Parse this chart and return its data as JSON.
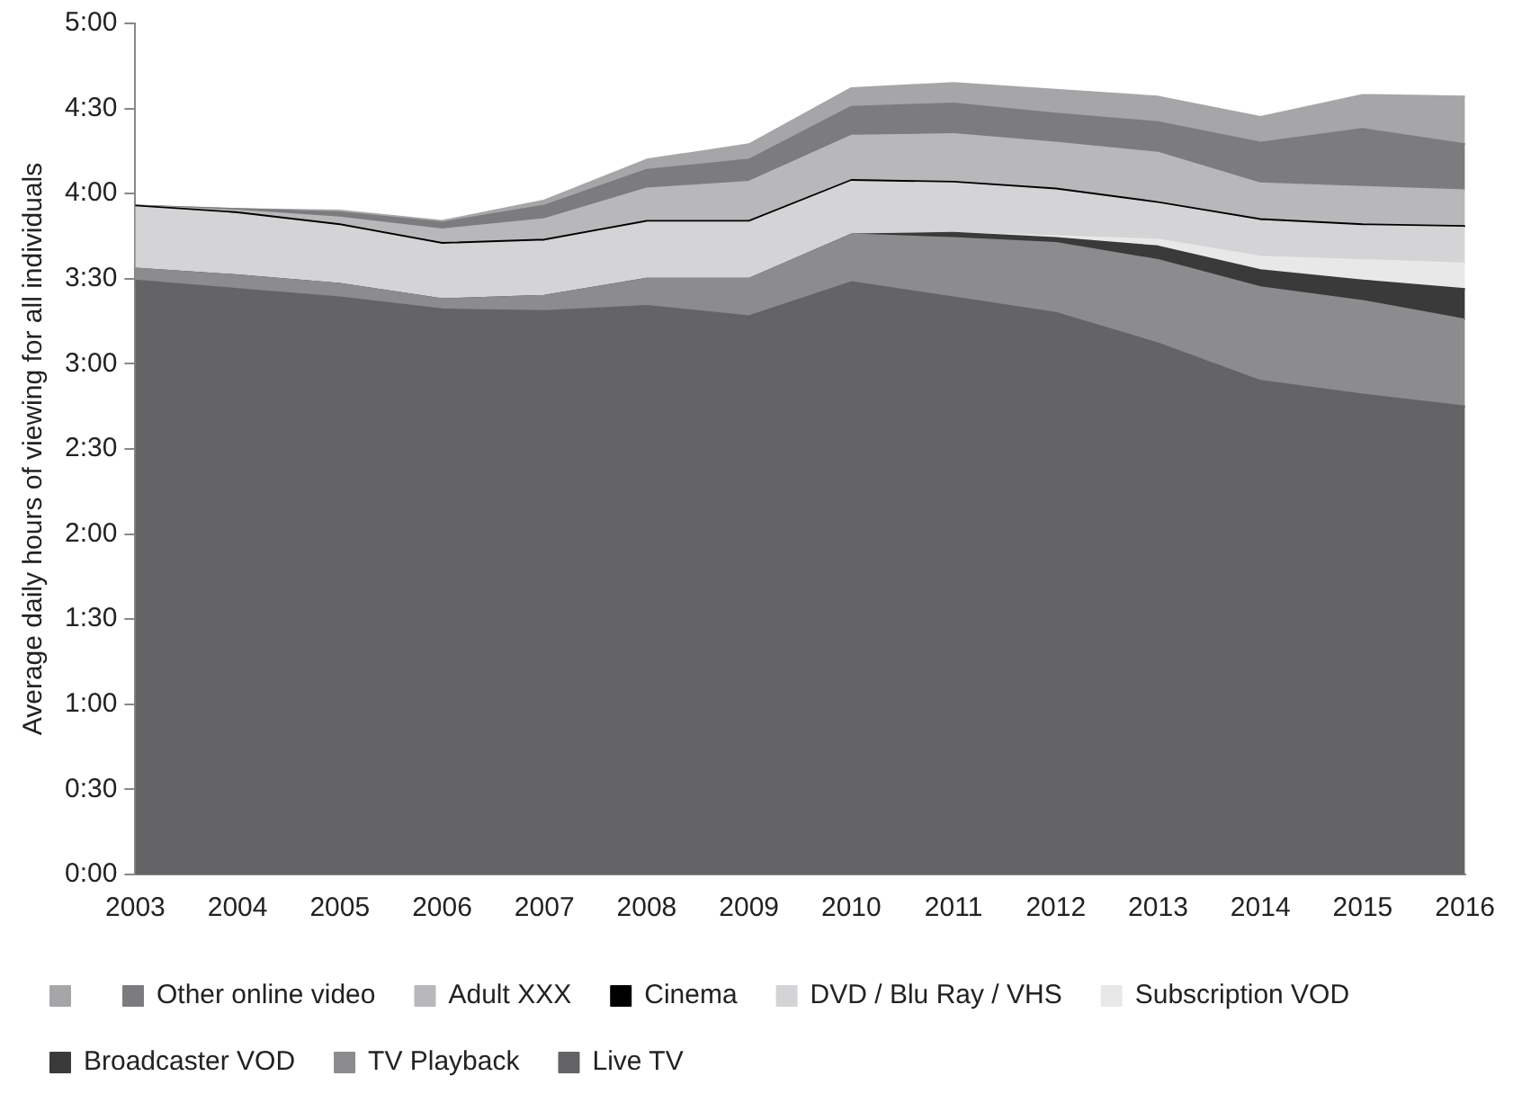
{
  "chart_data": {
    "type": "area",
    "stacked": true,
    "ylabel": "Average daily hours of viewing for all individuals",
    "categories": [
      "2003",
      "2004",
      "2005",
      "2006",
      "2007",
      "2008",
      "2009",
      "2010",
      "2011",
      "2012",
      "2013",
      "2014",
      "2015",
      "2016"
    ],
    "ylim": [
      0,
      5
    ],
    "yticks": [
      {
        "value": 0,
        "label": "0:00"
      },
      {
        "value": 0.5,
        "label": "0:30"
      },
      {
        "value": 1,
        "label": "1:00"
      },
      {
        "value": 1.5,
        "label": "1:30"
      },
      {
        "value": 2,
        "label": "2:00"
      },
      {
        "value": 2.5,
        "label": "2:30"
      },
      {
        "value": 3,
        "label": "3:00"
      },
      {
        "value": 3.5,
        "label": "3:30"
      },
      {
        "value": 4,
        "label": "4:00"
      },
      {
        "value": 4.5,
        "label": "4:30"
      },
      {
        "value": 5,
        "label": "5:00"
      }
    ],
    "grid": false,
    "legend": "bottom",
    "marker": "none",
    "series": [
      {
        "name": "Live TV",
        "color": "#646466",
        "values": [
          3.49,
          3.44,
          3.39,
          3.32,
          3.31,
          3.34,
          3.28,
          3.48,
          3.39,
          3.3,
          3.12,
          2.9,
          2.82,
          2.75
        ]
      },
      {
        "name": "TV Playback",
        "color": "#8c8c8f",
        "values": [
          0.07,
          0.08,
          0.08,
          0.06,
          0.09,
          0.16,
          0.22,
          0.28,
          0.35,
          0.41,
          0.49,
          0.55,
          0.55,
          0.51
        ]
      },
      {
        "name": "Broadcaster VOD",
        "color": "#3a3a3a",
        "values": [
          0,
          0,
          0,
          0,
          0,
          0,
          0,
          0,
          0.03,
          0.03,
          0.08,
          0.1,
          0.12,
          0.18
        ]
      },
      {
        "name": "Subscription VOD",
        "color": "#e8e8e8",
        "values": [
          0,
          0,
          0,
          0,
          0,
          0,
          0,
          0,
          0,
          0.01,
          0.04,
          0.08,
          0.12,
          0.15
        ]
      },
      {
        "name": "DVD / Blu Ray / VHS",
        "color": "#d4d4d6",
        "values": [
          0.36,
          0.36,
          0.34,
          0.32,
          0.32,
          0.33,
          0.33,
          0.31,
          0.29,
          0.27,
          0.21,
          0.21,
          0.2,
          0.21
        ]
      },
      {
        "name": "Cinema",
        "color": "#000000",
        "values": [
          0.01,
          0.01,
          0.01,
          0.01,
          0.01,
          0.01,
          0.01,
          0.01,
          0.01,
          0.01,
          0.01,
          0.01,
          0.01,
          0.01
        ]
      },
      {
        "name": "Adult XXX",
        "color": "#b8b8ba",
        "values": [
          0,
          0.01,
          0.04,
          0.08,
          0.12,
          0.19,
          0.23,
          0.26,
          0.28,
          0.27,
          0.29,
          0.21,
          0.22,
          0.21
        ]
      },
      {
        "name": "Other online video",
        "color": "#7c7c7e",
        "values": [
          0,
          0.01,
          0.03,
          0.04,
          0.08,
          0.11,
          0.13,
          0.17,
          0.18,
          0.17,
          0.18,
          0.24,
          0.34,
          0.27
        ]
      },
      {
        "color": "#a6a6a8",
        "values": [
          0,
          0,
          0.01,
          0.01,
          0.03,
          0.06,
          0.09,
          0.11,
          0.12,
          0.14,
          0.15,
          0.15,
          0.2,
          0.28
        ]
      }
    ]
  }
}
